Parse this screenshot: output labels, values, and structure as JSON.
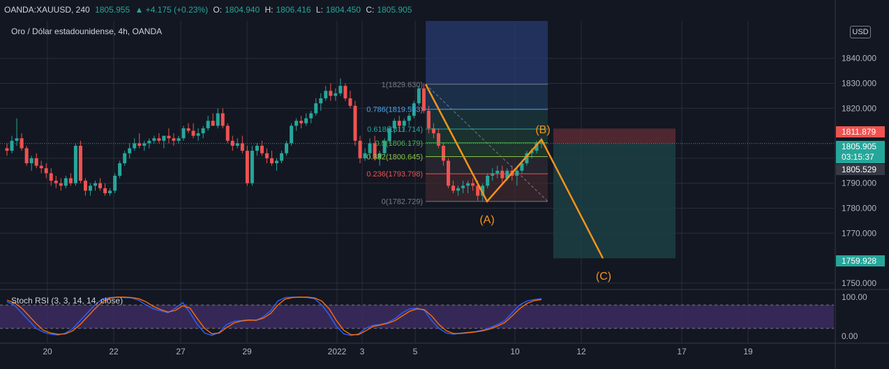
{
  "header": {
    "symbol": "OANDA:XAUUSD, 240",
    "last": "1805.955",
    "change": "▲ +4.175 (+0.23%)",
    "o_label": "O:",
    "o_value": "1804.940",
    "h_label": "H:",
    "h_value": "1806.416",
    "l_label": "L:",
    "l_value": "1804.450",
    "c_label": "C:",
    "c_value": "1805.905"
  },
  "subtitle": "Oro / Dólar estadounidense, 4h, OANDA",
  "currency_badge": "USD",
  "price_tags": {
    "target_high": "1811.879",
    "last_price": "1805.905",
    "countdown": "03:15:37",
    "prev_price": "1805.529",
    "target_low": "1759.928"
  },
  "colors": {
    "background": "#131722",
    "up": "#26a69a",
    "down": "#ef5350",
    "wave": "#f7931a",
    "stoch_k": "#2962ff",
    "stoch_d": "#ff6d00",
    "rsi_band": "#7e57c2"
  },
  "chart_data": [
    {
      "type": "candlestick",
      "title": "Oro / Dólar estadounidense, 4h, OANDA",
      "ylim": [
        1748,
        1855
      ],
      "y_ticks": [
        "1840.000",
        "1830.000",
        "1820.000",
        "1800.000",
        "1790.000",
        "1780.000",
        "1770.000",
        "1750.000"
      ],
      "x_ticks": [
        "20",
        "22",
        "27",
        "29",
        "2022",
        "3",
        "5",
        "10",
        "12",
        "17",
        "19"
      ],
      "ohlc": [
        [
          1804,
          1806,
          1801,
          1803
        ],
        [
          1803,
          1809,
          1802,
          1807
        ],
        [
          1807,
          1816,
          1805,
          1808
        ],
        [
          1808,
          1810,
          1803,
          1804
        ],
        [
          1804,
          1805,
          1797,
          1798
        ],
        [
          1798,
          1801,
          1795,
          1800
        ],
        [
          1800,
          1802,
          1796,
          1797
        ],
        [
          1797,
          1799,
          1794,
          1796
        ],
        [
          1796,
          1798,
          1792,
          1794
        ],
        [
          1794,
          1796,
          1789,
          1791
        ],
        [
          1791,
          1793,
          1788,
          1790
        ],
        [
          1790,
          1792,
          1787,
          1789
        ],
        [
          1789,
          1793,
          1788,
          1792
        ],
        [
          1792,
          1794,
          1789,
          1790
        ],
        [
          1790,
          1806,
          1789,
          1805
        ],
        [
          1805,
          1807,
          1790,
          1791
        ],
        [
          1791,
          1792,
          1785,
          1787
        ],
        [
          1787,
          1790,
          1785,
          1789
        ],
        [
          1789,
          1791,
          1787,
          1790
        ],
        [
          1790,
          1792,
          1787,
          1788
        ],
        [
          1788,
          1790,
          1785,
          1786
        ],
        [
          1786,
          1788,
          1785,
          1787
        ],
        [
          1787,
          1794,
          1786,
          1793
        ],
        [
          1793,
          1799,
          1792,
          1798
        ],
        [
          1798,
          1803,
          1797,
          1802
        ],
        [
          1802,
          1806,
          1800,
          1804
        ],
        [
          1804,
          1808,
          1803,
          1806
        ],
        [
          1806,
          1810,
          1804,
          1805
        ],
        [
          1805,
          1807,
          1803,
          1806
        ],
        [
          1806,
          1808,
          1804,
          1807
        ],
        [
          1807,
          1809,
          1806,
          1808
        ],
        [
          1808,
          1810,
          1806,
          1807
        ],
        [
          1807,
          1809,
          1804,
          1809
        ],
        [
          1809,
          1812,
          1806,
          1808
        ],
        [
          1808,
          1810,
          1805,
          1807
        ],
        [
          1807,
          1809,
          1806,
          1808
        ],
        [
          1808,
          1813,
          1807,
          1812
        ],
        [
          1812,
          1814,
          1810,
          1811
        ],
        [
          1811,
          1814,
          1808,
          1809
        ],
        [
          1809,
          1812,
          1807,
          1810
        ],
        [
          1810,
          1813,
          1808,
          1812
        ],
        [
          1812,
          1817,
          1811,
          1815
        ],
        [
          1815,
          1818,
          1813,
          1813
        ],
        [
          1813,
          1820,
          1812,
          1818
        ],
        [
          1818,
          1820,
          1812,
          1813
        ],
        [
          1813,
          1814,
          1806,
          1807
        ],
        [
          1807,
          1809,
          1803,
          1805
        ],
        [
          1805,
          1808,
          1804,
          1806
        ],
        [
          1806,
          1809,
          1802,
          1803
        ],
        [
          1803,
          1805,
          1789,
          1790
        ],
        [
          1790,
          1805,
          1789,
          1803
        ],
        [
          1803,
          1806,
          1801,
          1805
        ],
        [
          1805,
          1807,
          1801,
          1802
        ],
        [
          1802,
          1804,
          1798,
          1800
        ],
        [
          1800,
          1803,
          1797,
          1798
        ],
        [
          1798,
          1800,
          1795,
          1799
        ],
        [
          1799,
          1803,
          1798,
          1802
        ],
        [
          1802,
          1807,
          1801,
          1806
        ],
        [
          1806,
          1814,
          1805,
          1813
        ],
        [
          1813,
          1816,
          1811,
          1815
        ],
        [
          1815,
          1817,
          1812,
          1814
        ],
        [
          1814,
          1818,
          1813,
          1816
        ],
        [
          1816,
          1819,
          1814,
          1818
        ],
        [
          1818,
          1824,
          1817,
          1822
        ],
        [
          1822,
          1826,
          1819,
          1824
        ],
        [
          1824,
          1829,
          1823,
          1827
        ],
        [
          1827,
          1830,
          1823,
          1825
        ],
        [
          1825,
          1828,
          1823,
          1826
        ],
        [
          1826,
          1832,
          1825,
          1829
        ],
        [
          1829,
          1830,
          1823,
          1824
        ],
        [
          1824,
          1827,
          1820,
          1821
        ],
        [
          1821,
          1823,
          1805,
          1807
        ],
        [
          1807,
          1809,
          1798,
          1800
        ],
        [
          1800,
          1804,
          1799,
          1802
        ],
        [
          1802,
          1808,
          1800,
          1806
        ],
        [
          1806,
          1809,
          1799,
          1800
        ],
        [
          1800,
          1803,
          1797,
          1802
        ],
        [
          1802,
          1808,
          1801,
          1807
        ],
        [
          1807,
          1813,
          1806,
          1812
        ],
        [
          1812,
          1816,
          1810,
          1815
        ],
        [
          1815,
          1817,
          1811,
          1813
        ],
        [
          1813,
          1816,
          1811,
          1815
        ],
        [
          1815,
          1818,
          1813,
          1817
        ],
        [
          1817,
          1823,
          1816,
          1822
        ],
        [
          1822,
          1829,
          1821,
          1828
        ],
        [
          1828,
          1830,
          1818,
          1819
        ],
        [
          1819,
          1821,
          1810,
          1812
        ],
        [
          1812,
          1814,
          1808,
          1810
        ],
        [
          1810,
          1812,
          1804,
          1805
        ],
        [
          1805,
          1806,
          1797,
          1799
        ],
        [
          1799,
          1800,
          1788,
          1789
        ],
        [
          1789,
          1791,
          1786,
          1787
        ],
        [
          1787,
          1789,
          1785,
          1788
        ],
        [
          1788,
          1791,
          1786,
          1789
        ],
        [
          1789,
          1791,
          1786,
          1790
        ],
        [
          1790,
          1792,
          1787,
          1789
        ],
        [
          1789,
          1791,
          1783,
          1785
        ],
        [
          1785,
          1790,
          1783,
          1789
        ],
        [
          1789,
          1794,
          1788,
          1793
        ],
        [
          1793,
          1796,
          1791,
          1794
        ],
        [
          1794,
          1797,
          1792,
          1795
        ],
        [
          1795,
          1797,
          1790,
          1792
        ],
        [
          1792,
          1796,
          1791,
          1795
        ],
        [
          1795,
          1797,
          1791,
          1793
        ],
        [
          1793,
          1796,
          1789,
          1795
        ],
        [
          1795,
          1799,
          1794,
          1798
        ],
        [
          1798,
          1803,
          1797,
          1802
        ],
        [
          1802,
          1804,
          1800,
          1803
        ],
        [
          1803,
          1807,
          1802,
          1806
        ],
        [
          1806,
          1808,
          1804,
          1806
        ]
      ],
      "fibonacci": [
        {
          "label": "1(1829.630)",
          "value": 1829.63,
          "color": "#787b86"
        },
        {
          "label": "0.786(1819.593)",
          "value": 1819.593,
          "color": "#42a5f5"
        },
        {
          "label": "0.618(1811.714)",
          "value": 1811.714,
          "color": "#26a69a"
        },
        {
          "label": "0.5(1806.179)",
          "value": 1806.179,
          "color": "#4caf50"
        },
        {
          "label": "0.382(1800.645)",
          "value": 1800.645,
          "color": "#8bc34a"
        },
        {
          "label": "0.236(1793.798)",
          "value": 1793.798,
          "color": "#ef5350"
        },
        {
          "label": "0(1782.729)",
          "value": 1782.729,
          "color": "#787b86"
        }
      ],
      "waves": [
        {
          "label": "(A)",
          "price": 1782.729
        },
        {
          "label": "(B)",
          "price": 1807.5
        },
        {
          "label": "(C)",
          "price": 1759.928
        }
      ],
      "position": {
        "entry": 1805.905,
        "stop": 1811.879,
        "target": 1759.928
      }
    },
    {
      "type": "line",
      "title": "Stoch RSI (3, 3, 14, 14, close)",
      "ylim": [
        0,
        100
      ],
      "y_ticks": [
        "100.00",
        "0.00"
      ],
      "bands": [
        80,
        20
      ],
      "series": [
        {
          "name": "K",
          "values": [
            88,
            80,
            60,
            40,
            20,
            10,
            5,
            3,
            8,
            20,
            40,
            60,
            80,
            95,
            99,
            100,
            99,
            98,
            92,
            80,
            70,
            65,
            60,
            72,
            86,
            60,
            30,
            8,
            2,
            10,
            30,
            38,
            40,
            42,
            40,
            50,
            65,
            90,
            99,
            100,
            100,
            99,
            96,
            80,
            55,
            25,
            6,
            2,
            6,
            20,
            28,
            30,
            35,
            45,
            60,
            70,
            72,
            66,
            40,
            20,
            8,
            5,
            8,
            10,
            12,
            16,
            22,
            30,
            40,
            60,
            80,
            90,
            94,
            96
          ]
        },
        {
          "name": "D",
          "values": [
            92,
            86,
            72,
            52,
            32,
            15,
            8,
            5,
            6,
            14,
            30,
            50,
            70,
            88,
            97,
            100,
            100,
            99,
            96,
            88,
            76,
            68,
            62,
            66,
            78,
            72,
            45,
            20,
            6,
            8,
            22,
            34,
            39,
            41,
            41,
            46,
            58,
            80,
            95,
            99,
            100,
            100,
            98,
            90,
            70,
            40,
            15,
            4,
            4,
            14,
            25,
            29,
            33,
            40,
            52,
            64,
            70,
            68,
            52,
            30,
            14,
            7,
            7,
            9,
            11,
            14,
            19,
            26,
            35,
            52,
            70,
            84,
            91,
            94
          ]
        }
      ]
    }
  ]
}
